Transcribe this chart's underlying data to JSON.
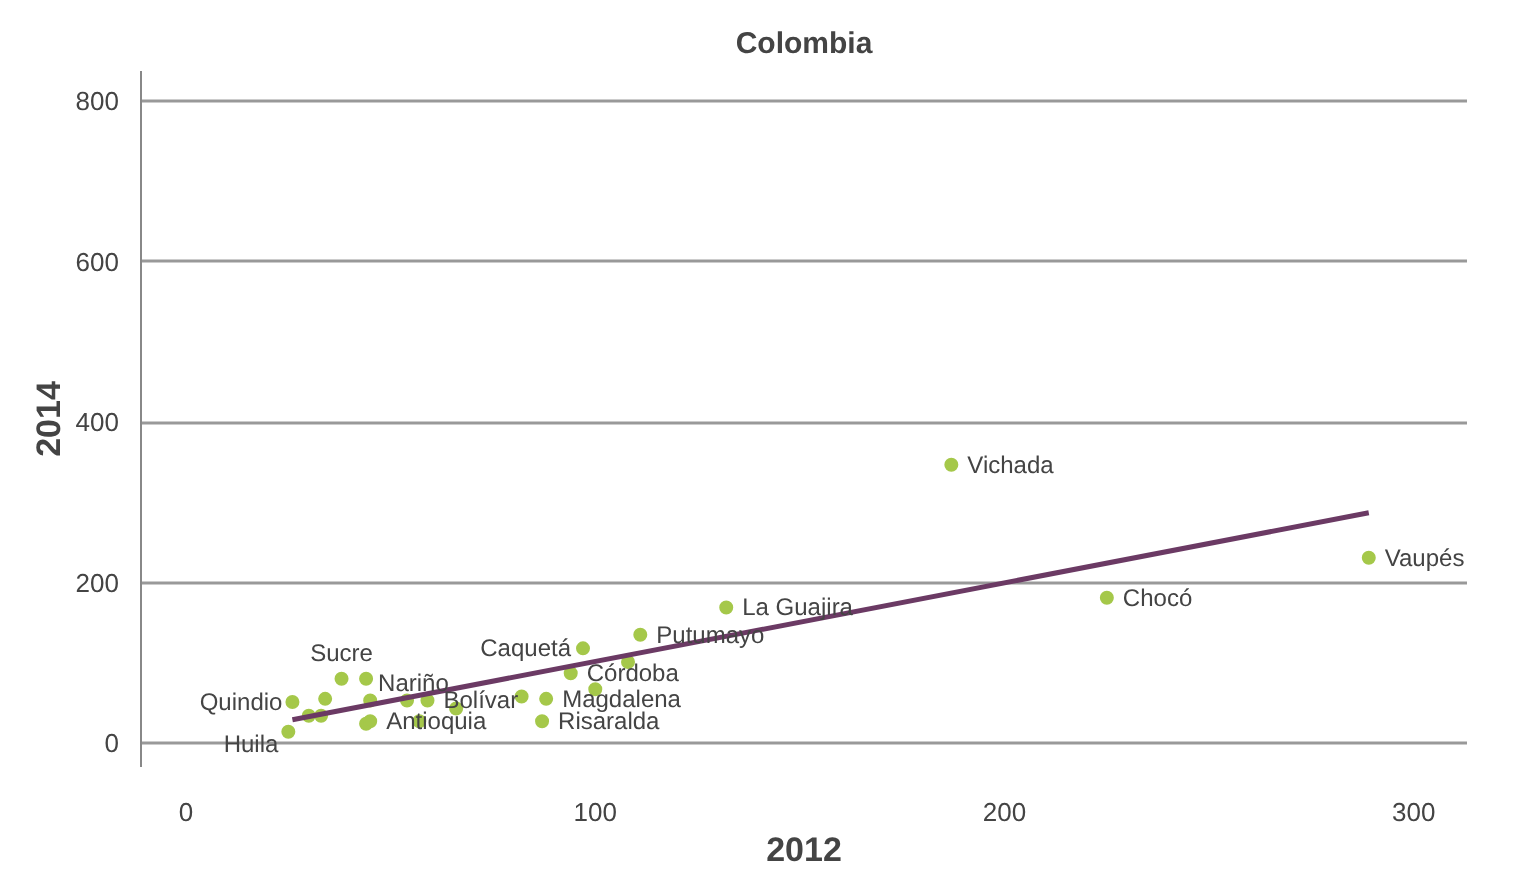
{
  "chart_data": {
    "type": "scatter",
    "title": "Colombia",
    "xlabel": "2012",
    "ylabel": "2014",
    "xlim": [
      -11,
      313
    ],
    "ylim": [
      -30,
      838
    ],
    "xticks": [
      0,
      100,
      200,
      300
    ],
    "yticks": [
      0,
      200,
      400,
      600,
      800
    ],
    "grid": "y",
    "series": [
      {
        "marker": "circle",
        "color": "#a5c84a",
        "x": [
          25,
          26,
          38,
          44,
          34,
          30,
          33,
          45,
          44,
          45,
          54,
          59,
          57,
          66,
          82,
          88,
          87,
          94,
          97,
          100,
          108,
          111,
          132,
          187,
          225,
          289
        ],
        "values": [
          14,
          51,
          80,
          80,
          55,
          34,
          34,
          53,
          24,
          27,
          53,
          53,
          27,
          43,
          58,
          55,
          27,
          87,
          118,
          67,
          101,
          135,
          169,
          347,
          181,
          231
        ]
      },
      {
        "type": "line",
        "color": "#6b3a64",
        "line_style": "solid",
        "x": [
          26,
          289
        ],
        "values": [
          29,
          287
        ]
      }
    ],
    "annotations": [
      {
        "text": "Huila",
        "x": 25,
        "y": 14
      },
      {
        "text": "Quindio",
        "x": 26,
        "y": 51
      },
      {
        "text": "Sucre",
        "x": 38,
        "y": 80
      },
      {
        "text": "Nariño",
        "x": 44,
        "y": 80
      },
      {
        "text": "Antioquia",
        "x": 45,
        "y": 27
      },
      {
        "text": "Bolívar",
        "x": 59,
        "y": 53
      },
      {
        "text": "Magdalena",
        "x": 88,
        "y": 55
      },
      {
        "text": "Risaralda",
        "x": 87,
        "y": 27
      },
      {
        "text": "Córdoba",
        "x": 94,
        "y": 87
      },
      {
        "text": "Caquetá",
        "x": 97,
        "y": 118
      },
      {
        "text": "Putumayo",
        "x": 111,
        "y": 135
      },
      {
        "text": "La Guajira",
        "x": 132,
        "y": 169
      },
      {
        "text": "Vichada",
        "x": 187,
        "y": 347
      },
      {
        "text": "Chocó",
        "x": 225,
        "y": 181
      },
      {
        "text": "Vaupés",
        "x": 289,
        "y": 231
      }
    ]
  }
}
